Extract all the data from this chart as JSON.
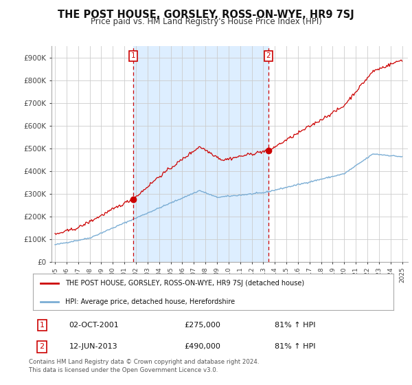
{
  "title": "THE POST HOUSE, GORSLEY, ROSS-ON-WYE, HR9 7SJ",
  "subtitle": "Price paid vs. HM Land Registry's House Price Index (HPI)",
  "legend_line1": "THE POST HOUSE, GORSLEY, ROSS-ON-WYE, HR9 7SJ (detached house)",
  "legend_line2": "HPI: Average price, detached house, Herefordshire",
  "footnote": "Contains HM Land Registry data © Crown copyright and database right 2024.\nThis data is licensed under the Open Government Licence v3.0.",
  "transaction1_date": "02-OCT-2001",
  "transaction1_price": "£275,000",
  "transaction1_hpi": "81% ↑ HPI",
  "transaction2_date": "12-JUN-2013",
  "transaction2_price": "£490,000",
  "transaction2_hpi": "81% ↑ HPI",
  "ylim": [
    0,
    950000
  ],
  "yticks": [
    0,
    100000,
    200000,
    300000,
    400000,
    500000,
    600000,
    700000,
    800000,
    900000
  ],
  "ytick_labels": [
    "£0",
    "£100K",
    "£200K",
    "£300K",
    "£400K",
    "£500K",
    "£600K",
    "£700K",
    "£800K",
    "£900K"
  ],
  "line_color_red": "#cc0000",
  "line_color_blue": "#7aadd4",
  "shade_color": "#ddeeff",
  "vline_color": "#cc0000",
  "grid_color": "#cccccc",
  "background_color": "#ffffff",
  "transaction_marker_x1": 2001.75,
  "transaction_marker_y1": 275000,
  "transaction_marker_x2": 2013.45,
  "transaction_marker_y2": 490000,
  "xlim_left": 1994.7,
  "xlim_right": 2025.5
}
